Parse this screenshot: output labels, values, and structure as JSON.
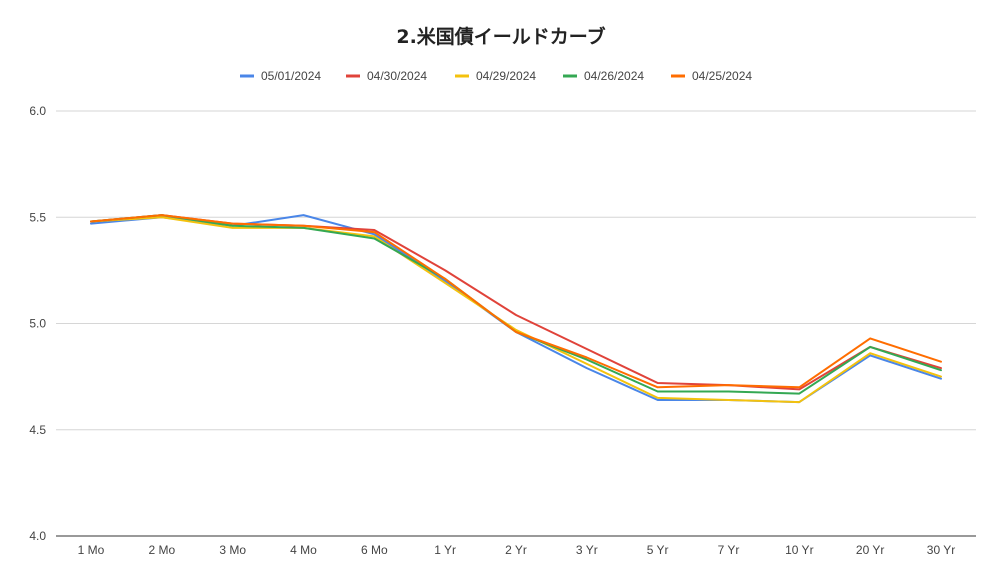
{
  "chart_data": {
    "type": "line",
    "title": "2.米国債イールドカーブ",
    "xlabel": "",
    "ylabel": "",
    "ylim": [
      4.0,
      6.0
    ],
    "yticks": [
      "4.0",
      "4.5",
      "5.0",
      "5.5",
      "6.0"
    ],
    "categories": [
      "1 Mo",
      "2 Mo",
      "3 Mo",
      "4 Mo",
      "6 Mo",
      "1 Yr",
      "2 Yr",
      "3 Yr",
      "5 Yr",
      "7 Yr",
      "10 Yr",
      "20 Yr",
      "30 Yr"
    ],
    "legend_position": "top",
    "grid": true,
    "series": [
      {
        "name": "05/01/2024",
        "color": "#4a86e8",
        "values": [
          5.47,
          5.5,
          5.46,
          5.51,
          5.42,
          5.2,
          4.96,
          4.79,
          4.64,
          4.64,
          4.63,
          4.85,
          4.74
        ]
      },
      {
        "name": "04/30/2024",
        "color": "#e0433a",
        "values": [
          5.48,
          5.51,
          5.47,
          5.46,
          5.44,
          5.25,
          5.04,
          4.88,
          4.72,
          4.71,
          4.69,
          4.89,
          4.79
        ]
      },
      {
        "name": "04/29/2024",
        "color": "#f4c20d",
        "values": [
          5.48,
          5.5,
          5.45,
          5.45,
          5.41,
          5.19,
          4.97,
          4.81,
          4.65,
          4.64,
          4.63,
          4.86,
          4.75
        ]
      },
      {
        "name": "04/26/2024",
        "color": "#34a853",
        "values": [
          5.48,
          5.51,
          5.46,
          5.45,
          5.4,
          5.21,
          4.96,
          4.83,
          4.68,
          4.68,
          4.67,
          4.89,
          4.78
        ]
      },
      {
        "name": "04/25/2024",
        "color": "#ff6d00",
        "values": [
          5.48,
          5.51,
          5.47,
          5.46,
          5.43,
          5.21,
          4.96,
          4.84,
          4.7,
          4.71,
          4.7,
          4.93,
          4.82
        ]
      }
    ]
  }
}
